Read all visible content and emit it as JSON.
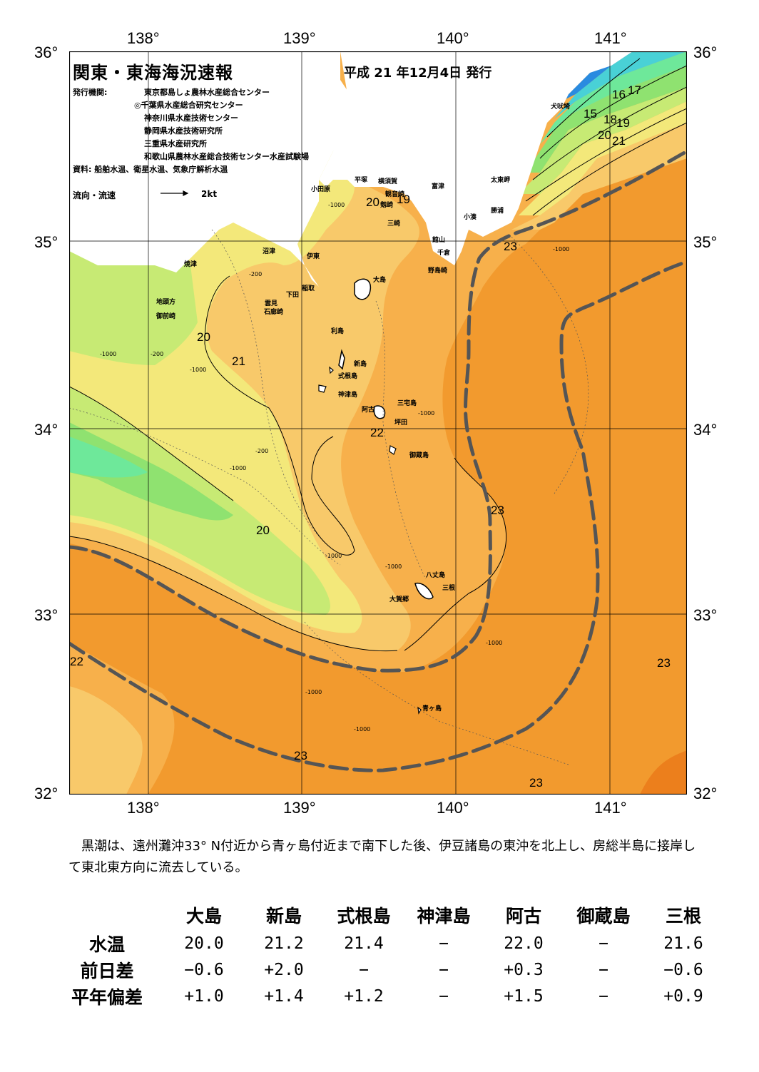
{
  "header": {
    "title": "関東・東海海況速報",
    "date": "平成 21 年12月4日 発行",
    "org_label": "発行機関:",
    "organizations": [
      "東京都島しょ農林水産総合センター",
      "◎千葉県水産総合研究センター",
      "神奈川県水産技術センター",
      "静岡県水産技術研究所",
      "三重県水産研究所",
      "和歌山県農林水産総合技術センター水産試験場"
    ],
    "source": "資料: 船舶水温、衛星水温、気象庁解析水温",
    "flow_legend": "流向・流速",
    "flow_unit": "2kt"
  },
  "axes": {
    "lon_labels": [
      "138°",
      "139°",
      "140°",
      "141°"
    ],
    "lat_labels": [
      "36°",
      "35°",
      "34°",
      "33°",
      "32°"
    ]
  },
  "places": [
    "犬吠埼",
    "太東岬",
    "勝浦",
    "小湊",
    "富津",
    "横須賀",
    "観音崎",
    "平塚",
    "小田原",
    "剱崎",
    "三崎",
    "館山",
    "千倉",
    "野島崎",
    "沼津",
    "伊東",
    "稲取",
    "下田",
    "雲見",
    "石廊崎",
    "焼津",
    "地頭方",
    "御前崎",
    "大島",
    "利島",
    "新島",
    "式根島",
    "神津島",
    "三宅島",
    "阿古",
    "坪田",
    "御蔵島",
    "八丈島",
    "三根",
    "大賀郷",
    "青ヶ島"
  ],
  "isotherm_labels": [
    "15",
    "16",
    "17",
    "18",
    "19",
    "20",
    "21",
    "22",
    "23"
  ],
  "isotherms_on_map": [
    {
      "text": "15"
    },
    {
      "text": "16"
    },
    {
      "text": "17"
    },
    {
      "text": "18"
    },
    {
      "text": "19"
    },
    {
      "text": "20"
    },
    {
      "text": "21"
    },
    {
      "text": "20"
    },
    {
      "text": "19"
    },
    {
      "text": "23"
    },
    {
      "text": "20"
    },
    {
      "text": "21"
    },
    {
      "text": "22"
    },
    {
      "text": "23"
    },
    {
      "text": "20"
    },
    {
      "text": "22"
    },
    {
      "text": "23"
    },
    {
      "text": "23"
    },
    {
      "text": "23"
    }
  ],
  "depth_labels": [
    "-200",
    "-1000"
  ],
  "colors": {
    "kuroshio_axis": "#555555",
    "t23": "#f29a2e",
    "t22": "#f7b04b",
    "t21": "#f8c96a",
    "t20": "#f3e87a",
    "t19": "#c7ea74",
    "t18": "#8fe270",
    "t17": "#6ee89a",
    "t16": "#49d1d6",
    "t15": "#2a8be0",
    "land": "#ffffff"
  },
  "description": "黒潮は、遠州灘沖33° N付近から青ヶ島付近まで南下した後、伊豆諸島の東沖を北上し、房総半島に接岸して東北東方向に流去している。",
  "observations": {
    "stations": [
      "大島",
      "新島",
      "式根島",
      "神津島",
      "阿古",
      "御蔵島",
      "三根"
    ],
    "rows": [
      {
        "label": "水温",
        "values": [
          "20.0",
          "21.2",
          "21.4",
          "−",
          "22.0",
          "−",
          "21.6"
        ]
      },
      {
        "label": "前日差",
        "values": [
          "−0.6",
          "+2.0",
          "−",
          "−",
          "+0.3",
          "−",
          "−0.6"
        ]
      },
      {
        "label": "平年偏差",
        "values": [
          "+1.0",
          "+1.4",
          "+1.2",
          "−",
          "+1.5",
          "−",
          "+0.9"
        ]
      }
    ]
  }
}
